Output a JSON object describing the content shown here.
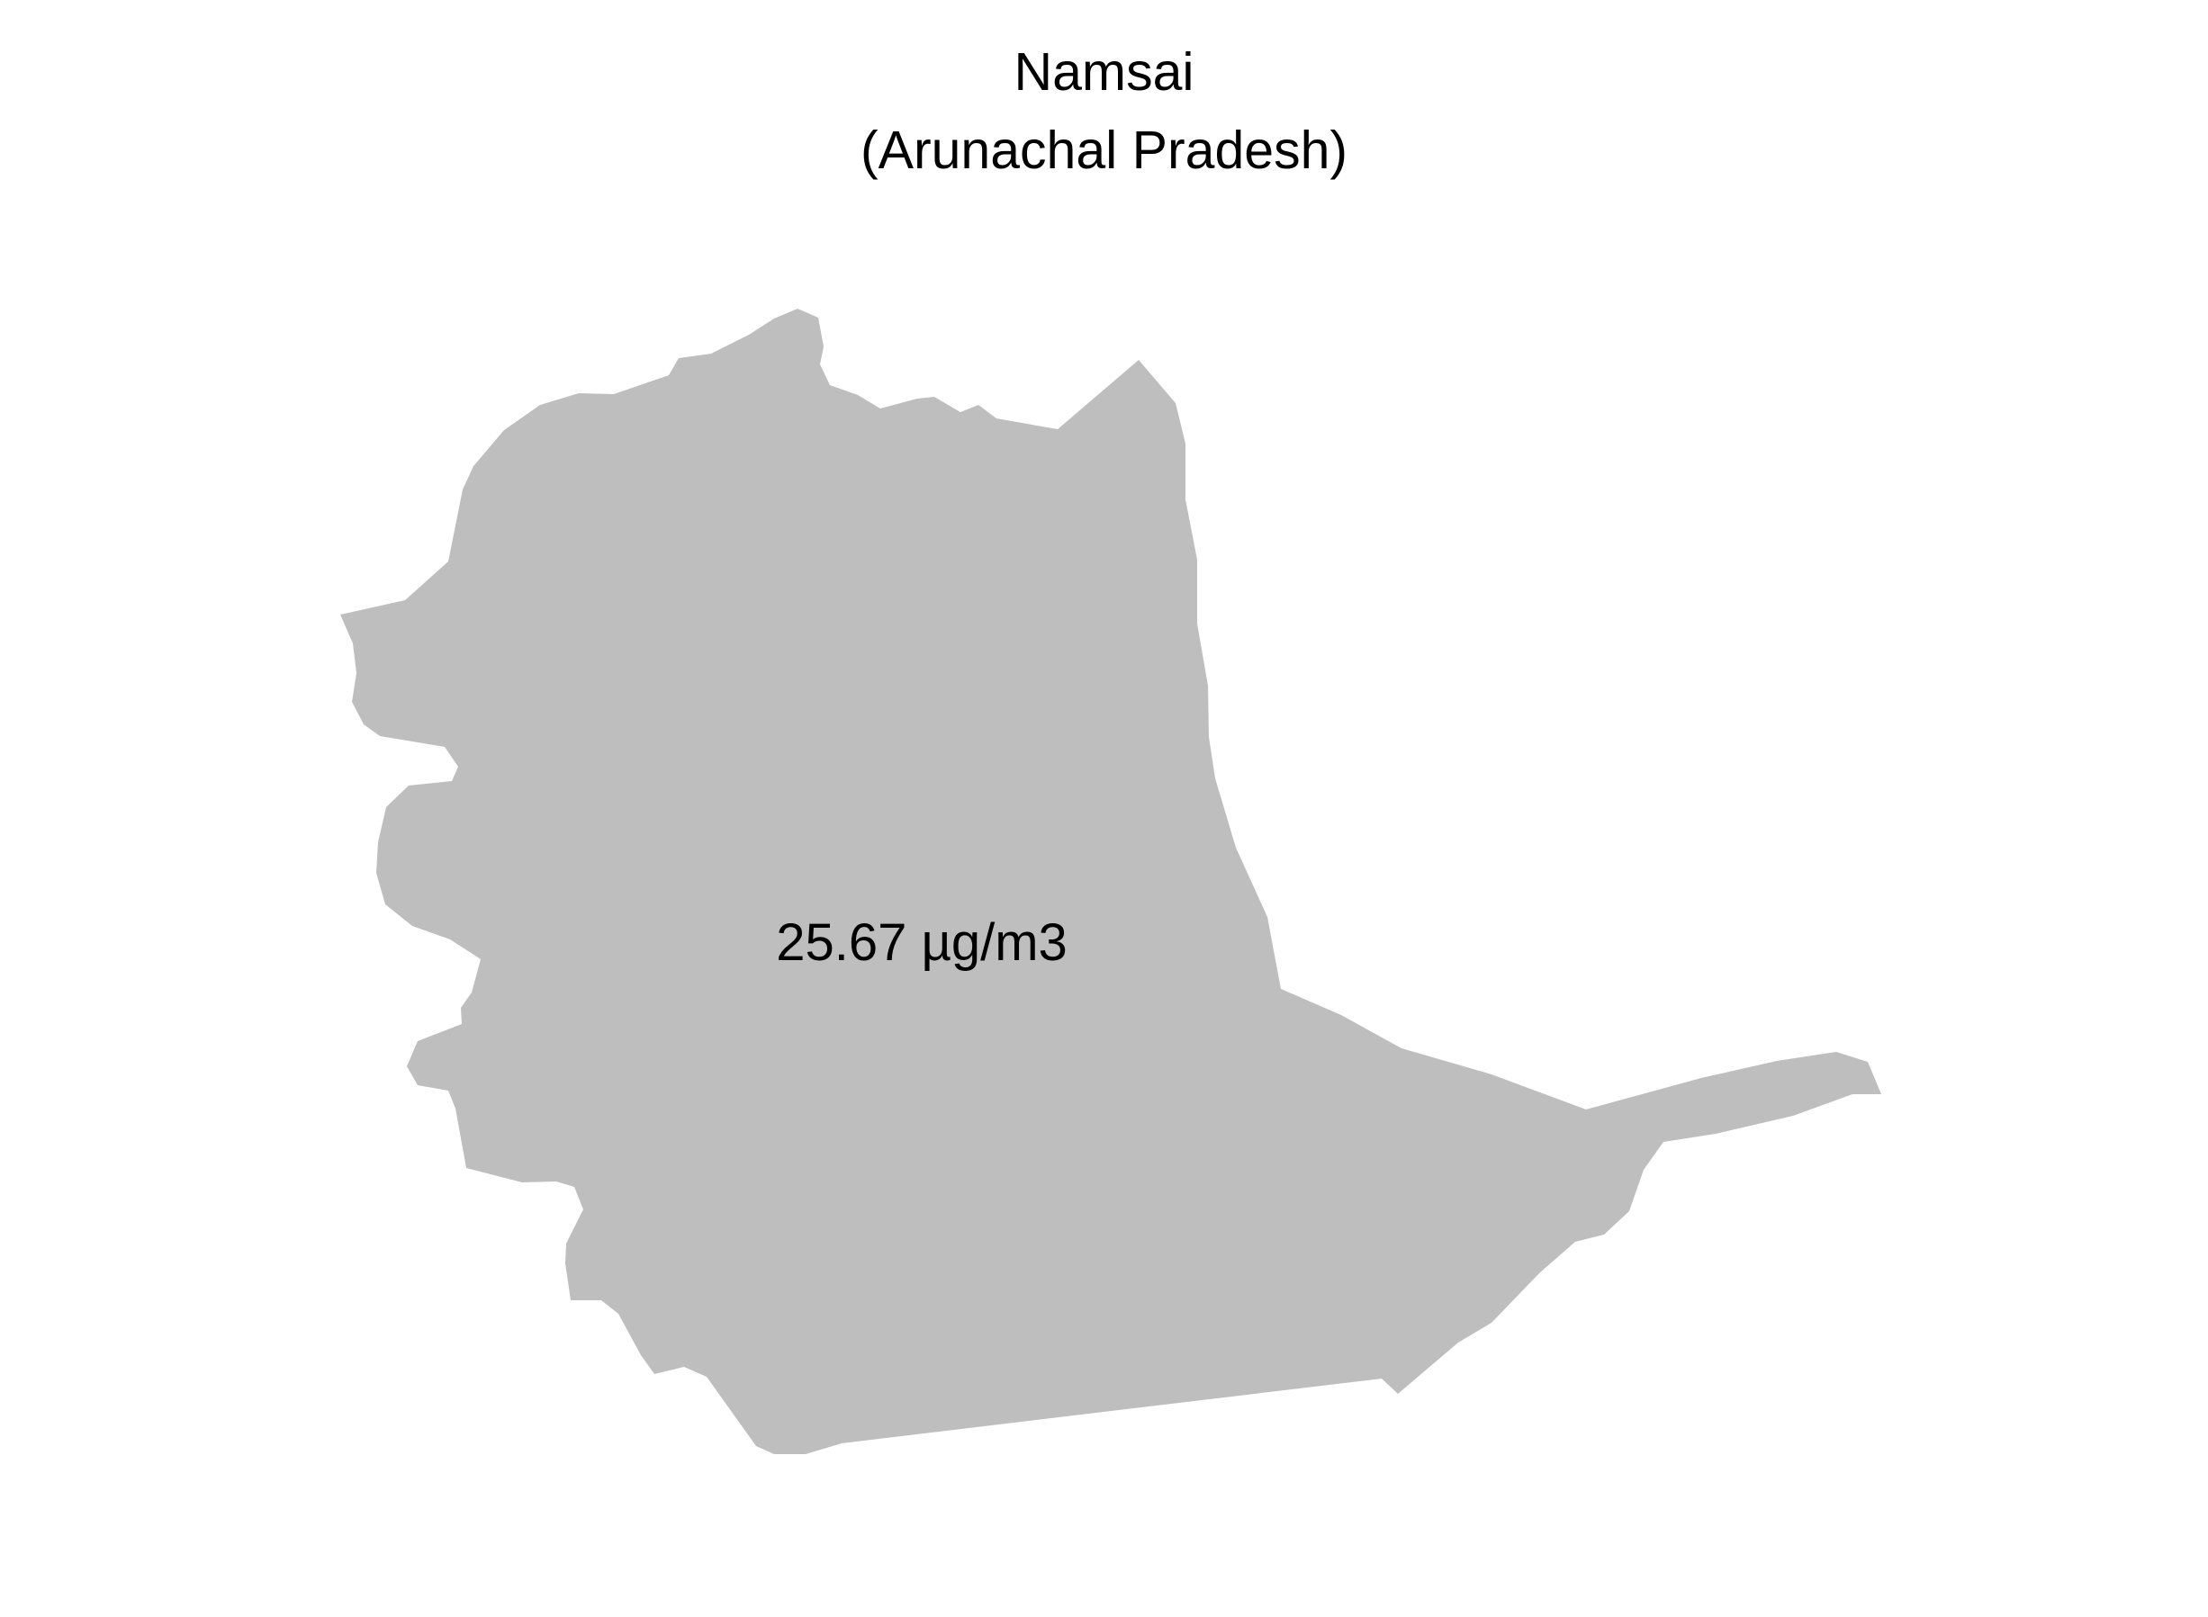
{
  "map": {
    "title": "Namsai",
    "subtitle": "(Arunachal Pradesh)",
    "region": {
      "name": "Namsai",
      "state": "Arunachal Pradesh",
      "value": 25.67,
      "value_label": "25.67 µg/m3",
      "fill_color": "#bebebe"
    },
    "background_color": "#ffffff"
  }
}
